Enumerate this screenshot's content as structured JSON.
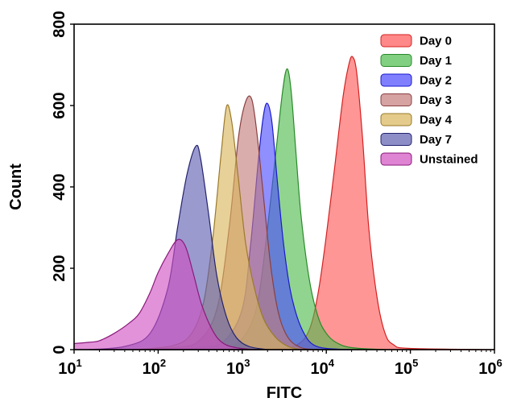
{
  "chart_data": {
    "type": "area",
    "title": "",
    "xlabel": "FITC",
    "ylabel": "Count",
    "x_scale": "log",
    "xlim": [
      10,
      1000000
    ],
    "ylim": [
      0,
      800
    ],
    "x_ticks": [
      {
        "value": 10,
        "base": "10",
        "exp": "1"
      },
      {
        "value": 100,
        "base": "10",
        "exp": "2"
      },
      {
        "value": 1000,
        "base": "10",
        "exp": "3"
      },
      {
        "value": 10000,
        "base": "10",
        "exp": "4"
      },
      {
        "value": 100000,
        "base": "10",
        "exp": "5"
      },
      {
        "value": 1000000,
        "base": "10",
        "exp": "6"
      }
    ],
    "y_ticks": [
      0,
      200,
      400,
      600,
      800
    ],
    "grid": false,
    "legend_position": "top-right",
    "series": [
      {
        "name": "Day 0",
        "fill": "#ff5555",
        "stroke": "#d42020",
        "points": [
          [
            1000,
            0
          ],
          [
            2500,
            3
          ],
          [
            4500,
            12
          ],
          [
            6300,
            50
          ],
          [
            8000,
            140
          ],
          [
            10000,
            280
          ],
          [
            12600,
            450
          ],
          [
            15800,
            620
          ],
          [
            18500,
            700
          ],
          [
            20500,
            720
          ],
          [
            23000,
            680
          ],
          [
            27000,
            520
          ],
          [
            32000,
            300
          ],
          [
            40000,
            130
          ],
          [
            50000,
            40
          ],
          [
            63000,
            12
          ],
          [
            100000,
            3
          ],
          [
            1000000,
            0
          ]
        ]
      },
      {
        "name": "Day 1",
        "fill": "#4cba4c",
        "stroke": "#2a8a2a",
        "points": [
          [
            100,
            0
          ],
          [
            400,
            3
          ],
          [
            800,
            10
          ],
          [
            1260,
            60
          ],
          [
            1600,
            140
          ],
          [
            2000,
            300
          ],
          [
            2500,
            480
          ],
          [
            3000,
            630
          ],
          [
            3400,
            690
          ],
          [
            3800,
            640
          ],
          [
            4300,
            500
          ],
          [
            5000,
            330
          ],
          [
            6300,
            170
          ],
          [
            8000,
            80
          ],
          [
            10000,
            40
          ],
          [
            13000,
            18
          ],
          [
            20000,
            5
          ],
          [
            50000,
            0
          ]
        ]
      },
      {
        "name": "Day 2",
        "fill": "#4a4aff",
        "stroke": "#1a1acc",
        "points": [
          [
            100,
            0
          ],
          [
            300,
            5
          ],
          [
            600,
            20
          ],
          [
            1000,
            100
          ],
          [
            1260,
            260
          ],
          [
            1580,
            480
          ],
          [
            1800,
            580
          ],
          [
            2000,
            605
          ],
          [
            2250,
            560
          ],
          [
            2600,
            420
          ],
          [
            3100,
            260
          ],
          [
            3700,
            150
          ],
          [
            4500,
            80
          ],
          [
            5600,
            35
          ],
          [
            7000,
            12
          ],
          [
            10000,
            3
          ],
          [
            20000,
            0
          ]
        ]
      },
      {
        "name": "Day 3",
        "fill": "#c47a7a",
        "stroke": "#8a4040",
        "points": [
          [
            60,
            0
          ],
          [
            150,
            5
          ],
          [
            300,
            20
          ],
          [
            500,
            100
          ],
          [
            700,
            300
          ],
          [
            900,
            520
          ],
          [
            1100,
            610
          ],
          [
            1300,
            615
          ],
          [
            1500,
            530
          ],
          [
            1800,
            370
          ],
          [
            2200,
            200
          ],
          [
            2700,
            90
          ],
          [
            3500,
            30
          ],
          [
            5000,
            5
          ],
          [
            8000,
            0
          ]
        ]
      },
      {
        "name": "Day 4",
        "fill": "#d9b55a",
        "stroke": "#9a7a2a",
        "points": [
          [
            50,
            0
          ],
          [
            150,
            10
          ],
          [
            250,
            40
          ],
          [
            350,
            120
          ],
          [
            450,
            280
          ],
          [
            560,
            480
          ],
          [
            650,
            598
          ],
          [
            750,
            560
          ],
          [
            900,
            420
          ],
          [
            1100,
            260
          ],
          [
            1400,
            150
          ],
          [
            1800,
            75
          ],
          [
            2500,
            30
          ],
          [
            3500,
            8
          ],
          [
            5000,
            0
          ]
        ]
      },
      {
        "name": "Day 7",
        "fill": "#5c5cb0",
        "stroke": "#23236e",
        "points": [
          [
            15,
            0
          ],
          [
            40,
            8
          ],
          [
            80,
            40
          ],
          [
            130,
            150
          ],
          [
            170,
            300
          ],
          [
            220,
            430
          ],
          [
            280,
            500
          ],
          [
            320,
            470
          ],
          [
            400,
            330
          ],
          [
            500,
            180
          ],
          [
            650,
            80
          ],
          [
            850,
            30
          ],
          [
            1200,
            8
          ],
          [
            2000,
            0
          ]
        ]
      },
      {
        "name": "Unstained",
        "fill": "#d14fc1",
        "stroke": "#8a1a7a",
        "points": [
          [
            10,
            15
          ],
          [
            15,
            18
          ],
          [
            20,
            22
          ],
          [
            30,
            40
          ],
          [
            45,
            65
          ],
          [
            60,
            90
          ],
          [
            80,
            140
          ],
          [
            100,
            190
          ],
          [
            130,
            235
          ],
          [
            170,
            270
          ],
          [
            210,
            255
          ],
          [
            260,
            190
          ],
          [
            330,
            110
          ],
          [
            450,
            45
          ],
          [
            600,
            15
          ],
          [
            900,
            4
          ],
          [
            1500,
            0
          ]
        ]
      }
    ]
  }
}
